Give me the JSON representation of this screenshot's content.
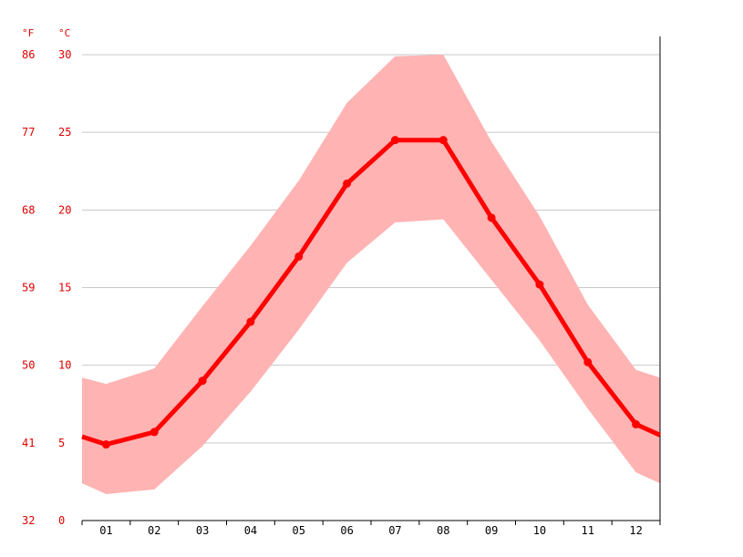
{
  "chart_data": {
    "type": "line",
    "unit_labels": {
      "left": "°F",
      "right": "°C"
    },
    "categories": [
      "01",
      "02",
      "03",
      "04",
      "05",
      "06",
      "07",
      "08",
      "09",
      "10",
      "11",
      "12"
    ],
    "y_ticks_c": [
      0,
      5,
      10,
      15,
      20,
      25,
      30
    ],
    "y_ticks_f": [
      "32",
      "41",
      "50",
      "59",
      "68",
      "77",
      "86"
    ],
    "ylim": [
      0,
      30
    ],
    "grid": true,
    "series": [
      {
        "values": [
          4.9,
          5.7,
          9.0,
          12.8,
          17.0,
          21.7,
          24.5,
          24.5,
          19.5,
          15.2,
          10.2,
          6.2
        ]
      }
    ],
    "band": {
      "upper": [
        8.8,
        9.8,
        13.8,
        17.7,
        21.9,
        26.9,
        29.9,
        30.0,
        24.4,
        19.6,
        13.9,
        9.7
      ],
      "lower": [
        1.7,
        2.0,
        4.8,
        8.3,
        12.3,
        16.6,
        19.2,
        19.4,
        15.5,
        11.6,
        7.2,
        3.1
      ]
    },
    "edge_values": {
      "start": 5.4,
      "end": 5.5,
      "band_start_upper": 9.2,
      "band_start_lower": 2.4,
      "band_end_upper": 9.2,
      "band_end_lower": 2.4
    },
    "colors": {
      "line": "#ff0000",
      "band": "#ffb3b3",
      "grid": "#c8c8c8",
      "axis": "#000000",
      "y_labels": "#e00000"
    }
  }
}
